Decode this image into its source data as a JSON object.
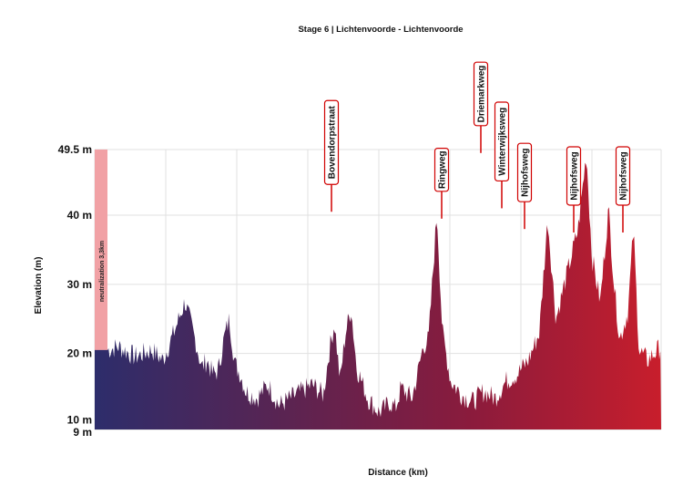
{
  "chart_data": {
    "type": "area",
    "title": "Stage 6 | Lichtenvoorde - Lichtenvoorde",
    "xlabel": "Distance (km)",
    "ylabel": "Elevation (m)",
    "ylim": [
      9,
      49.5
    ],
    "y_tick_labels": [
      "49.5 m",
      "40 m",
      "30 m",
      "20 m",
      "10 m",
      "9 m"
    ],
    "y_tick_values": [
      49.5,
      40,
      30,
      20,
      10,
      9
    ],
    "grid": true,
    "neutralization_label": "neutralization 3,3km",
    "gradient_colors": [
      "#2d2d6b",
      "#5a2452",
      "#8b1b3c",
      "#c81e2c"
    ],
    "profile_points": [
      [
        0,
        20.5
      ],
      [
        0.02,
        21.0
      ],
      [
        0.05,
        19.5
      ],
      [
        0.08,
        20.5
      ],
      [
        0.1,
        19.0
      ],
      [
        0.12,
        23.0
      ],
      [
        0.14,
        27.5
      ],
      [
        0.16,
        21.5
      ],
      [
        0.17,
        18.0
      ],
      [
        0.18,
        19.0
      ],
      [
        0.19,
        17.0
      ],
      [
        0.2,
        17.5
      ],
      [
        0.21,
        22.0
      ],
      [
        0.22,
        25.0
      ],
      [
        0.23,
        18.5
      ],
      [
        0.24,
        17.0
      ],
      [
        0.25,
        14.5
      ],
      [
        0.27,
        13.5
      ],
      [
        0.29,
        15.5
      ],
      [
        0.3,
        14.0
      ],
      [
        0.31,
        12.5
      ],
      [
        0.33,
        13.5
      ],
      [
        0.35,
        14.5
      ],
      [
        0.37,
        15.5
      ],
      [
        0.39,
        14.0
      ],
      [
        0.4,
        20.0
      ],
      [
        0.41,
        24.5
      ],
      [
        0.42,
        16.0
      ],
      [
        0.43,
        23.0
      ],
      [
        0.44,
        26.5
      ],
      [
        0.45,
        18.0
      ],
      [
        0.47,
        13.5
      ],
      [
        0.49,
        11.5
      ],
      [
        0.5,
        12.0
      ],
      [
        0.51,
        13.0
      ],
      [
        0.52,
        12.0
      ],
      [
        0.53,
        15.0
      ],
      [
        0.55,
        13.5
      ],
      [
        0.56,
        17.0
      ],
      [
        0.57,
        21.0
      ],
      [
        0.58,
        22.0
      ],
      [
        0.595,
        40.5
      ],
      [
        0.605,
        23.0
      ],
      [
        0.62,
        16.0
      ],
      [
        0.64,
        14.0
      ],
      [
        0.66,
        13.0
      ],
      [
        0.68,
        14.5
      ],
      [
        0.7,
        13.5
      ],
      [
        0.72,
        16.0
      ],
      [
        0.74,
        17.0
      ],
      [
        0.76,
        19.0
      ],
      [
        0.78,
        23.0
      ],
      [
        0.795,
        39.5
      ],
      [
        0.81,
        25.0
      ],
      [
        0.83,
        31.5
      ],
      [
        0.85,
        38.0
      ],
      [
        0.865,
        49.0
      ],
      [
        0.875,
        34.0
      ],
      [
        0.89,
        27.5
      ],
      [
        0.905,
        41.0
      ],
      [
        0.915,
        30.0
      ],
      [
        0.925,
        22.0
      ],
      [
        0.94,
        26.0
      ],
      [
        0.95,
        38.0
      ],
      [
        0.96,
        20.5
      ],
      [
        0.975,
        19.0
      ],
      [
        1.0,
        21.0
      ]
    ],
    "climbs": [
      {
        "name": "Bovendorpstraat",
        "x": 0.595,
        "peak": 40.5
      },
      {
        "name": "Ringweg",
        "x": 0.795,
        "peak": 39.5
      },
      {
        "name": "Driemarkweg",
        "x": 0.865,
        "peak": 49.0
      },
      {
        "name": "Winterwijksweg",
        "x": 0.905,
        "peak": 41.0
      },
      {
        "name": "Nijhofsweg",
        "x": 0.95,
        "peak": 38.0
      },
      {
        "name": "Nijhofsweg",
        "x": 0.985,
        "peak": 37.5
      },
      {
        "name": "Nijhofsweg",
        "x": 1.075,
        "peak": 37.5
      }
    ]
  }
}
